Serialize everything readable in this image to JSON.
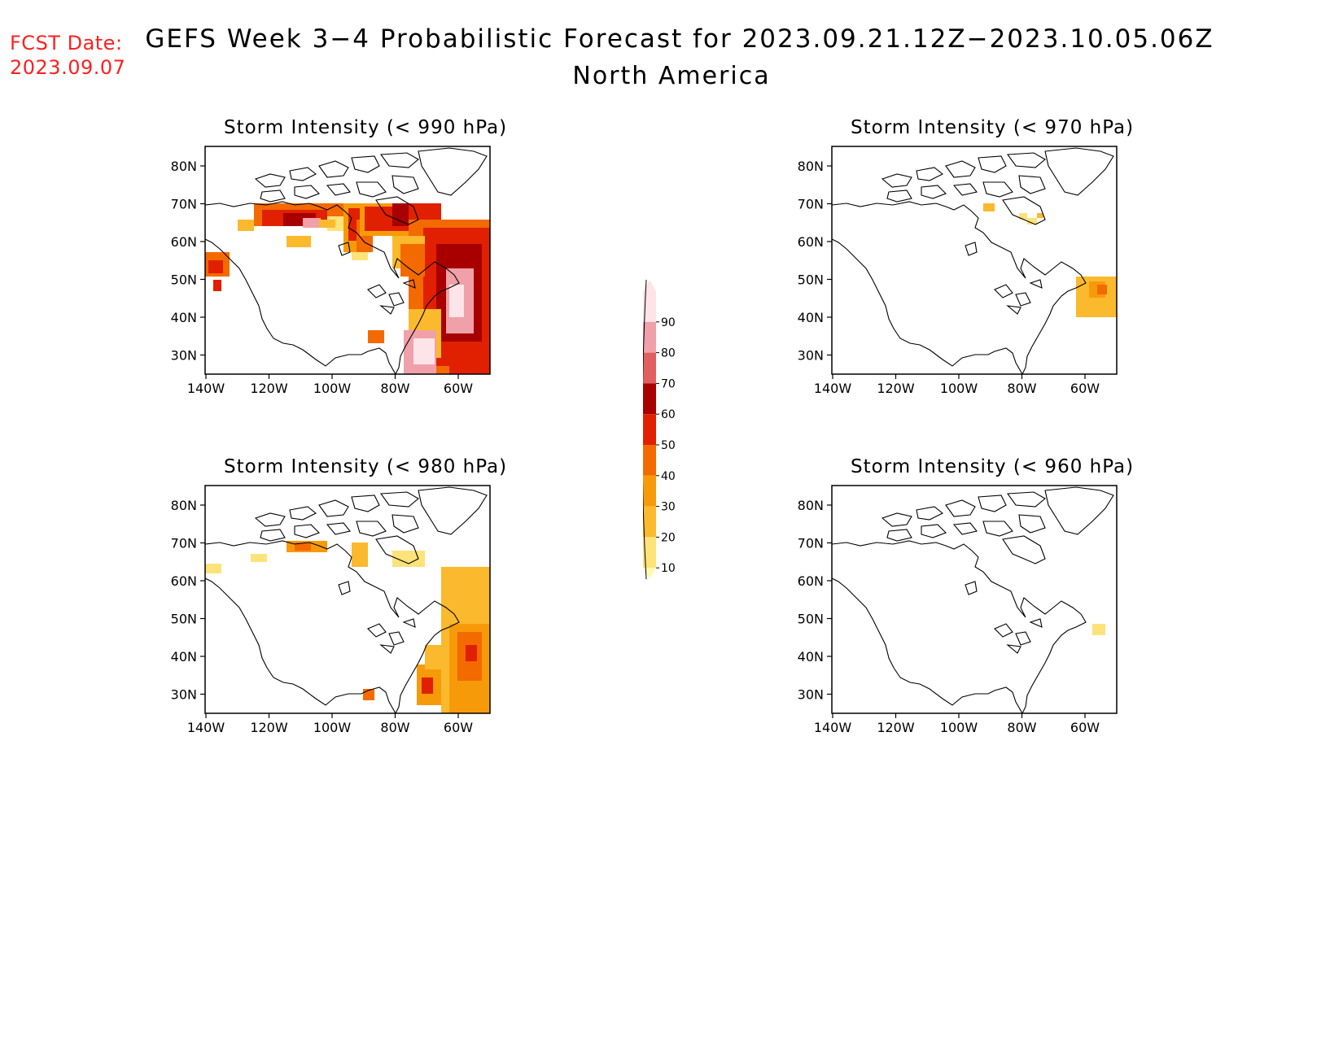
{
  "fcst_date": {
    "label": "FCST Date:",
    "value": "2023.09.07"
  },
  "title": "GEFS Week 3−4 Probabilistic Forecast for 2023.09.21.12Z−2023.10.05.06Z",
  "subtitle": "North America",
  "axes": {
    "lat_labels": [
      "80N",
      "70N",
      "60N",
      "50N",
      "40N",
      "30N"
    ],
    "lon_labels": [
      "140W",
      "120W",
      "100W",
      "80W",
      "60W"
    ]
  },
  "panels": [
    {
      "id": "p990",
      "title": "Storm Intensity (< 990 hPa)",
      "coverage": "extensive"
    },
    {
      "id": "p970",
      "title": "Storm Intensity (< 970 hPa)",
      "coverage": "sparse"
    },
    {
      "id": "p980",
      "title": "Storm Intensity (< 980 hPa)",
      "coverage": "moderate"
    },
    {
      "id": "p960",
      "title": "Storm Intensity (< 960 hPa)",
      "coverage": "minimal"
    }
  ],
  "colorbar": {
    "levels": [
      "10",
      "20",
      "30",
      "40",
      "50",
      "60",
      "70",
      "80",
      "90"
    ],
    "colors": [
      "#fffab0",
      "#fde37a",
      "#fbb92d",
      "#f79a0a",
      "#f36a00",
      "#e02000",
      "#a80000",
      "#e06060",
      "#f0a0a8",
      "#fde4e8"
    ]
  }
}
